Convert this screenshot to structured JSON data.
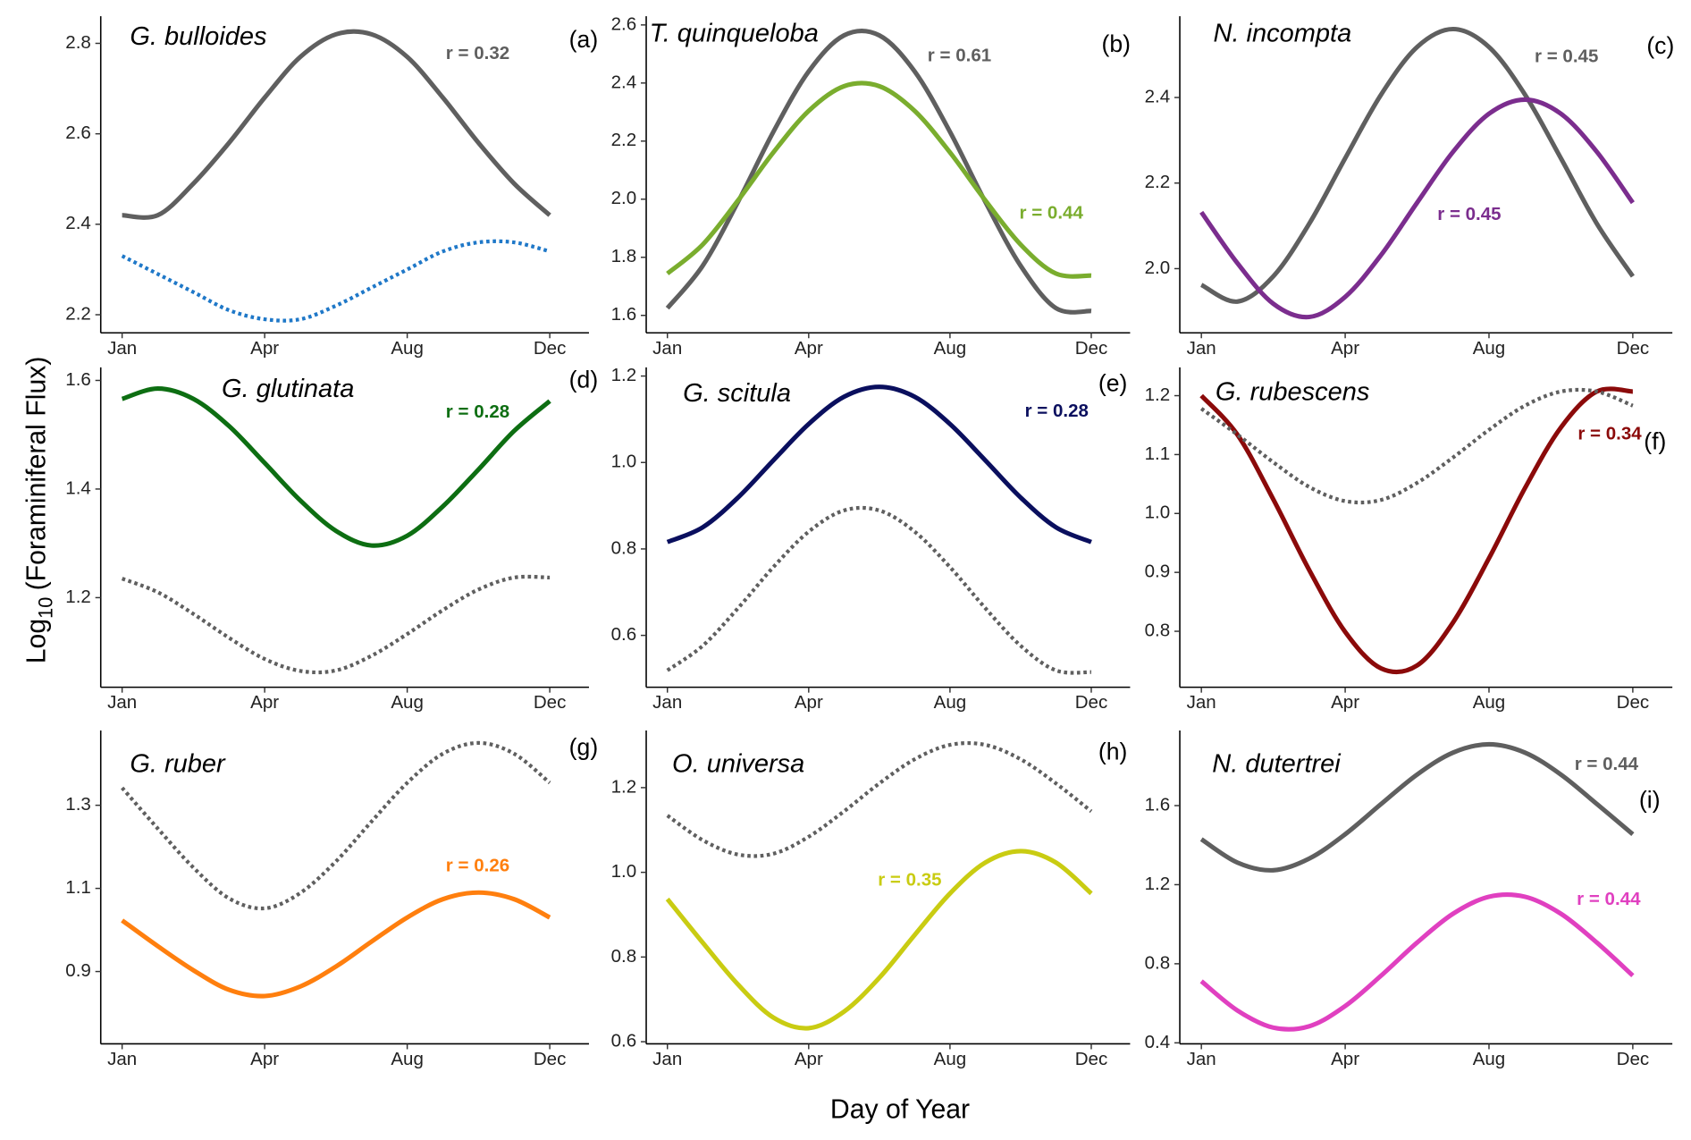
{
  "x_label": "Day of Year",
  "y_label": [
    "Log",
    "10",
    "(Foraminiferal Flux)"
  ],
  "chart_data": [
    {
      "type": "line",
      "title": "G. bulloides",
      "panel_label": "(a)",
      "annotations": [
        {
          "text": "r = 0.32",
          "color": "#5f5f5f"
        }
      ],
      "x": [
        0,
        30,
        60,
        90,
        120,
        150,
        180,
        210,
        240,
        270,
        300,
        330,
        360
      ],
      "xlim": [
        -18,
        393
      ],
      "xticks": [
        {
          "value": 0,
          "label": "Jan"
        },
        {
          "value": 120,
          "label": "Apr"
        },
        {
          "value": 240,
          "label": "Aug"
        },
        {
          "value": 360,
          "label": "Dec"
        }
      ],
      "ylim": [
        2.16,
        2.86
      ],
      "yticks": [
        2.2,
        2.4,
        2.6,
        2.8
      ],
      "series": [
        {
          "color": "#5f5f5f",
          "style": "solid",
          "values": [
            2.42,
            2.42,
            2.49,
            2.58,
            2.68,
            2.77,
            2.82,
            2.82,
            2.77,
            2.68,
            2.58,
            2.49,
            2.42
          ]
        },
        {
          "color": "#1f78c8",
          "style": "dotted",
          "values": [
            2.33,
            2.29,
            2.25,
            2.21,
            2.19,
            2.19,
            2.22,
            2.26,
            2.3,
            2.34,
            2.36,
            2.36,
            2.34
          ]
        }
      ]
    },
    {
      "type": "line",
      "title": "T. quinqueloba",
      "panel_label": "(b)",
      "annotations": [
        {
          "text": "r = 0.61",
          "color": "#5f5f5f"
        },
        {
          "text": "r = 0.44",
          "color": "#7aad2e"
        }
      ],
      "x": [
        0,
        30,
        60,
        90,
        120,
        150,
        180,
        210,
        240,
        270,
        300,
        330,
        360
      ],
      "xlim": [
        -18,
        393
      ],
      "xticks": [
        {
          "value": 0,
          "label": "Jan"
        },
        {
          "value": 120,
          "label": "Apr"
        },
        {
          "value": 240,
          "label": "Aug"
        },
        {
          "value": 360,
          "label": "Dec"
        }
      ],
      "ylim": [
        1.54,
        2.63
      ],
      "yticks": [
        1.6,
        1.8,
        {
          "value": 2,
          "label": "2.0"
        },
        2.2,
        2.4,
        2.6
      ],
      "series": [
        {
          "color": "#5f5f5f",
          "style": "solid",
          "values": [
            1.625,
            1.771,
            1.991,
            2.232,
            2.44,
            2.564,
            2.564,
            2.44,
            2.232,
            1.991,
            1.771,
            1.625,
            1.615
          ]
        },
        {
          "color": "#7aad2e",
          "style": "solid",
          "values": [
            1.744,
            1.844,
            1.996,
            2.161,
            2.304,
            2.389,
            2.389,
            2.304,
            2.161,
            1.996,
            1.844,
            1.744,
            1.737
          ]
        }
      ]
    },
    {
      "type": "line",
      "title": "N. incompta",
      "panel_label": "(c)",
      "annotations": [
        {
          "text": "r = 0.45",
          "color": "#5f5f5f"
        },
        {
          "text": "r = 0.45",
          "color": "#7b2d8e"
        }
      ],
      "x": [
        0,
        30,
        60,
        90,
        120,
        150,
        180,
        210,
        240,
        270,
        300,
        330,
        360
      ],
      "xlim": [
        -18,
        393
      ],
      "xticks": [
        {
          "value": 0,
          "label": "Jan"
        },
        {
          "value": 120,
          "label": "Apr"
        },
        {
          "value": 240,
          "label": "Aug"
        },
        {
          "value": 360,
          "label": "Dec"
        }
      ],
      "ylim": [
        1.85,
        2.59
      ],
      "yticks": [
        {
          "value": 2,
          "label": "2.0"
        },
        2.2,
        2.4
      ],
      "series": [
        {
          "color": "#5f5f5f",
          "style": "solid",
          "values": [
            1.962,
            1.923,
            1.982,
            2.105,
            2.258,
            2.407,
            2.518,
            2.56,
            2.518,
            2.407,
            2.258,
            2.105,
            1.982
          ]
        },
        {
          "color": "#7b2d8e",
          "style": "solid",
          "values": [
            2.132,
            2.013,
            1.918,
            1.887,
            1.934,
            2.032,
            2.154,
            2.273,
            2.362,
            2.395,
            2.362,
            2.273,
            2.154
          ]
        }
      ]
    },
    {
      "type": "line",
      "title": "G. glutinata",
      "panel_label": "(d)",
      "annotations": [
        {
          "text": "r = 0.28",
          "color": "#0d6e12"
        }
      ],
      "x": [
        0,
        30,
        60,
        90,
        120,
        150,
        180,
        210,
        240,
        270,
        300,
        330,
        360
      ],
      "xlim": [
        -18,
        393
      ],
      "xticks": [
        {
          "value": 0,
          "label": "Jan"
        },
        {
          "value": 120,
          "label": "Apr"
        },
        {
          "value": 240,
          "label": "Aug"
        },
        {
          "value": 360,
          "label": "Dec"
        }
      ],
      "ylim": [
        1.035,
        1.624
      ],
      "yticks": [
        1.2,
        1.4,
        1.6
      ],
      "series": [
        {
          "color": "#0d6e12",
          "style": "solid",
          "values": [
            1.566,
            1.585,
            1.566,
            1.516,
            1.448,
            1.379,
            1.323,
            1.296,
            1.314,
            1.368,
            1.436,
            1.507,
            1.562
          ]
        },
        {
          "color": "#5f5f5f",
          "style": "dotted",
          "values": [
            1.235,
            1.21,
            1.17,
            1.126,
            1.087,
            1.065,
            1.066,
            1.093,
            1.133,
            1.177,
            1.215,
            1.237,
            1.237
          ]
        }
      ]
    },
    {
      "type": "line",
      "title": "G. scitula",
      "panel_label": "(e)",
      "annotations": [
        {
          "text": "r = 0.28",
          "color": "#0a0f5e"
        }
      ],
      "x": [
        0,
        30,
        60,
        90,
        120,
        150,
        180,
        210,
        240,
        270,
        300,
        330,
        360
      ],
      "xlim": [
        -18,
        393
      ],
      "xticks": [
        {
          "value": 0,
          "label": "Jan"
        },
        {
          "value": 120,
          "label": "Apr"
        },
        {
          "value": 240,
          "label": "Aug"
        },
        {
          "value": 360,
          "label": "Dec"
        }
      ],
      "ylim": [
        0.48,
        1.22
      ],
      "yticks": [
        0.6,
        0.8,
        {
          "value": 1,
          "label": "1.0"
        },
        1.2
      ],
      "series": [
        {
          "color": "#0a0f5e",
          "style": "solid",
          "values": [
            0.816,
            0.85,
            0.919,
            1.005,
            1.089,
            1.152,
            1.175,
            1.152,
            1.089,
            1.005,
            0.919,
            0.85,
            0.816
          ]
        },
        {
          "color": "#5f5f5f",
          "style": "dotted",
          "values": [
            0.519,
            0.576,
            0.663,
            0.758,
            0.84,
            0.889,
            0.889,
            0.84,
            0.758,
            0.663,
            0.576,
            0.519,
            0.515
          ]
        }
      ]
    },
    {
      "type": "line",
      "title": "G. rubescens",
      "panel_label": "(f)",
      "annotations": [
        {
          "text": "r = 0.34",
          "color": "#8b0a0a"
        }
      ],
      "x": [
        0,
        30,
        60,
        90,
        120,
        150,
        180,
        210,
        240,
        270,
        300,
        330,
        360
      ],
      "xlim": [
        -18,
        393
      ],
      "xticks": [
        {
          "value": 0,
          "label": "Jan"
        },
        {
          "value": 120,
          "label": "Apr"
        },
        {
          "value": 240,
          "label": "Aug"
        },
        {
          "value": 360,
          "label": "Dec"
        }
      ],
      "ylim": [
        0.705,
        1.248
      ],
      "yticks": [
        0.8,
        0.9,
        {
          "value": 1,
          "label": "1.0"
        },
        1.1,
        1.2
      ],
      "series": [
        {
          "color": "#8b0a0a",
          "style": "solid",
          "values": [
            1.2,
            1.134,
            1.024,
            0.904,
            0.799,
            0.737,
            0.742,
            0.815,
            0.924,
            1.043,
            1.146,
            1.207,
            1.207
          ]
        },
        {
          "color": "#5f5f5f",
          "style": "dotted",
          "values": [
            1.178,
            1.134,
            1.087,
            1.045,
            1.021,
            1.023,
            1.052,
            1.095,
            1.142,
            1.183,
            1.207,
            1.207,
            1.183
          ]
        }
      ]
    },
    {
      "type": "line",
      "title": "G. ruber",
      "panel_label": "(g)",
      "annotations": [
        {
          "text": "r = 0.26",
          "color": "#ff7f0e"
        }
      ],
      "x": [
        0,
        30,
        60,
        90,
        120,
        150,
        180,
        210,
        240,
        270,
        300,
        330,
        360
      ],
      "xlim": [
        -18,
        393
      ],
      "xticks": [
        {
          "value": 0,
          "label": "Jan"
        },
        {
          "value": 120,
          "label": "Apr"
        },
        {
          "value": 240,
          "label": "Aug"
        },
        {
          "value": 360,
          "label": "Dec"
        }
      ],
      "ylim": [
        0.726,
        1.48
      ],
      "yticks": [
        0.9,
        1.1,
        1.3
      ],
      "series": [
        {
          "color": "#5f5f5f",
          "style": "dotted",
          "values": [
            1.342,
            1.244,
            1.15,
            1.076,
            1.052,
            1.089,
            1.165,
            1.261,
            1.354,
            1.424,
            1.45,
            1.424,
            1.354
          ]
        },
        {
          "color": "#ff7f0e",
          "style": "solid",
          "values": [
            1.023,
            0.961,
            0.903,
            0.856,
            0.841,
            0.864,
            0.912,
            0.972,
            1.03,
            1.074,
            1.09,
            1.074,
            1.03
          ]
        }
      ]
    },
    {
      "type": "line",
      "title": "O. universa",
      "panel_label": "(h)",
      "annotations": [
        {
          "text": "r = 0.35",
          "color": "#c9cc12"
        }
      ],
      "x": [
        0,
        30,
        60,
        90,
        120,
        150,
        180,
        210,
        240,
        270,
        300,
        330,
        360
      ],
      "xlim": [
        -18,
        393
      ],
      "xticks": [
        {
          "value": 0,
          "label": "Jan"
        },
        {
          "value": 120,
          "label": "Apr"
        },
        {
          "value": 240,
          "label": "Aug"
        },
        {
          "value": 360,
          "label": "Dec"
        }
      ],
      "ylim": [
        0.595,
        1.335
      ],
      "yticks": [
        0.6,
        0.8,
        {
          "value": 1,
          "label": "1.0"
        },
        1.2
      ],
      "series": [
        {
          "color": "#5f5f5f",
          "style": "dotted",
          "values": [
            1.134,
            1.076,
            1.042,
            1.044,
            1.084,
            1.144,
            1.21,
            1.267,
            1.301,
            1.301,
            1.267,
            1.21,
            1.144
          ]
        },
        {
          "color": "#c9cc12",
          "style": "solid",
          "values": [
            0.937,
            0.834,
            0.735,
            0.657,
            0.632,
            0.671,
            0.751,
            0.852,
            0.95,
            1.023,
            1.05,
            1.023,
            0.95
          ]
        }
      ]
    },
    {
      "type": "line",
      "title": "N. dutertrei",
      "panel_label": "(i)",
      "annotations": [
        {
          "text": "r = 0.44",
          "color": "#5f5f5f"
        },
        {
          "text": "r = 0.44",
          "color": "#e040c0"
        }
      ],
      "x": [
        0,
        30,
        60,
        90,
        120,
        150,
        180,
        210,
        240,
        270,
        300,
        330,
        360
      ],
      "xlim": [
        -18,
        393
      ],
      "xticks": [
        {
          "value": 0,
          "label": "Jan"
        },
        {
          "value": 120,
          "label": "Apr"
        },
        {
          "value": 240,
          "label": "Aug"
        },
        {
          "value": 360,
          "label": "Dec"
        }
      ],
      "ylim": [
        0.395,
        1.98
      ],
      "yticks": [
        0.4,
        0.8,
        1.2,
        1.6
      ],
      "series": [
        {
          "color": "#5f5f5f",
          "style": "solid",
          "values": [
            1.43,
            1.312,
            1.273,
            1.332,
            1.455,
            1.608,
            1.757,
            1.868,
            1.91,
            1.868,
            1.757,
            1.608,
            1.455
          ]
        },
        {
          "color": "#e040c0",
          "style": "solid",
          "values": [
            0.712,
            0.564,
            0.477,
            0.484,
            0.586,
            0.74,
            0.907,
            1.053,
            1.139,
            1.139,
            1.053,
            0.907,
            0.74
          ]
        }
      ]
    }
  ]
}
